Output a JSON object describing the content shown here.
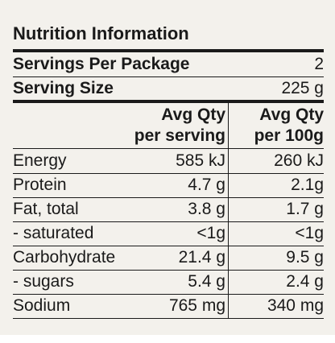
{
  "title": "Nutrition Information",
  "summary": [
    {
      "label": "Servings Per Package",
      "value": "2"
    },
    {
      "label": "Serving Size",
      "value": "225 g"
    }
  ],
  "columns": [
    {
      "line1": "Avg Qty",
      "line2": "per serving"
    },
    {
      "line1": "Avg Qty",
      "line2": "per 100g"
    }
  ],
  "rows": [
    [
      "Energy",
      "585 kJ",
      "260 kJ"
    ],
    [
      "Protein",
      "4.7 g",
      "2.1g"
    ],
    [
      "Fat, total",
      "3.8 g",
      "1.7 g"
    ],
    [
      "- saturated",
      "<1g",
      "<1g"
    ],
    [
      "Carbohydrate",
      "21.4 g",
      "9.5 g"
    ],
    [
      "- sugars",
      "5.4 g",
      "2.4 g"
    ],
    [
      "Sodium",
      "765 mg",
      "340 mg"
    ]
  ]
}
